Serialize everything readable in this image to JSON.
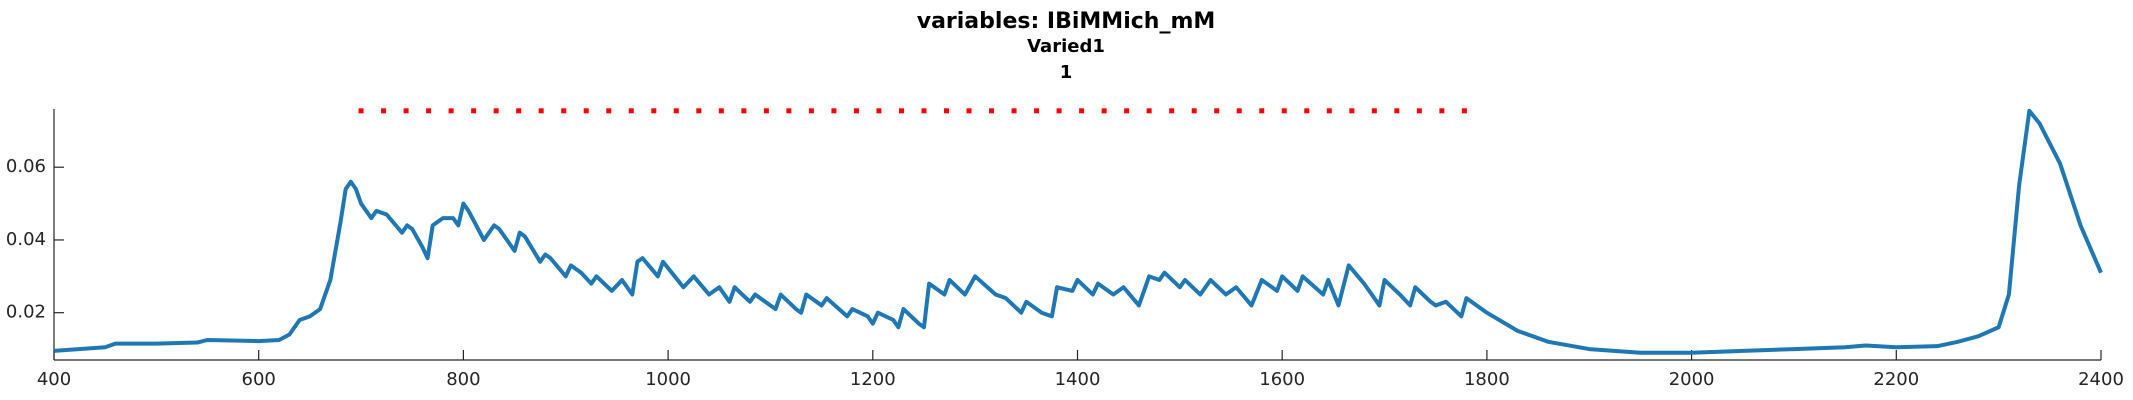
{
  "chart_data": {
    "type": "line",
    "title": "variables: IBiMMich_mM",
    "subtitle": [
      "Varied1",
      "1"
    ],
    "x": [
      400,
      450,
      460,
      500,
      540,
      550,
      600,
      620,
      630,
      640,
      650,
      660,
      670,
      680,
      685,
      690,
      695,
      700,
      710,
      715,
      725,
      740,
      745,
      750,
      760,
      765,
      770,
      780,
      790,
      795,
      800,
      805,
      820,
      830,
      835,
      850,
      855,
      860,
      875,
      880,
      885,
      900,
      905,
      915,
      925,
      930,
      945,
      955,
      965,
      970,
      975,
      990,
      995,
      1015,
      1025,
      1040,
      1050,
      1060,
      1065,
      1080,
      1085,
      1105,
      1110,
      1125,
      1130,
      1135,
      1150,
      1155,
      1175,
      1180,
      1195,
      1200,
      1205,
      1220,
      1225,
      1230,
      1245,
      1250,
      1255,
      1270,
      1275,
      1290,
      1300,
      1320,
      1330,
      1345,
      1350,
      1365,
      1375,
      1380,
      1395,
      1400,
      1415,
      1420,
      1435,
      1445,
      1460,
      1470,
      1480,
      1485,
      1500,
      1505,
      1520,
      1530,
      1545,
      1555,
      1570,
      1580,
      1595,
      1600,
      1615,
      1620,
      1640,
      1645,
      1655,
      1665,
      1680,
      1690,
      1695,
      1700,
      1715,
      1725,
      1730,
      1745,
      1750,
      1760,
      1775,
      1780,
      1800,
      1830,
      1860,
      1900,
      1950,
      2000,
      2050,
      2100,
      2150,
      2170,
      2200,
      2240,
      2260,
      2280,
      2300,
      2310,
      2320,
      2330,
      2340,
      2360,
      2380,
      2400
    ],
    "series": [
      {
        "color": "#1f77b4",
        "values": [
          0.0095,
          0.0105,
          0.0115,
          0.0115,
          0.0118,
          0.0125,
          0.0122,
          0.0125,
          0.014,
          0.018,
          0.019,
          0.021,
          0.029,
          0.045,
          0.054,
          0.056,
          0.054,
          0.05,
          0.046,
          0.048,
          0.047,
          0.042,
          0.044,
          0.043,
          0.038,
          0.035,
          0.044,
          0.046,
          0.046,
          0.044,
          0.05,
          0.048,
          0.04,
          0.044,
          0.043,
          0.037,
          0.042,
          0.041,
          0.034,
          0.036,
          0.035,
          0.03,
          0.033,
          0.031,
          0.028,
          0.03,
          0.026,
          0.029,
          0.025,
          0.034,
          0.035,
          0.03,
          0.034,
          0.027,
          0.03,
          0.025,
          0.027,
          0.023,
          0.027,
          0.023,
          0.025,
          0.021,
          0.025,
          0.021,
          0.02,
          0.025,
          0.022,
          0.024,
          0.019,
          0.021,
          0.019,
          0.017,
          0.02,
          0.018,
          0.016,
          0.021,
          0.017,
          0.016,
          0.028,
          0.025,
          0.029,
          0.025,
          0.03,
          0.025,
          0.024,
          0.02,
          0.023,
          0.02,
          0.019,
          0.027,
          0.026,
          0.029,
          0.025,
          0.028,
          0.025,
          0.027,
          0.022,
          0.03,
          0.029,
          0.031,
          0.027,
          0.029,
          0.025,
          0.029,
          0.025,
          0.027,
          0.022,
          0.029,
          0.026,
          0.03,
          0.026,
          0.03,
          0.025,
          0.029,
          0.022,
          0.033,
          0.028,
          0.024,
          0.022,
          0.029,
          0.025,
          0.022,
          0.027,
          0.023,
          0.022,
          0.023,
          0.019,
          0.024,
          0.02,
          0.015,
          0.012,
          0.01,
          0.009,
          0.009,
          0.0095,
          0.01,
          0.0105,
          0.011,
          0.0105,
          0.0108,
          0.012,
          0.0135,
          0.016,
          0.025,
          0.055,
          0.0755,
          0.072,
          0.061,
          0.044,
          0.031
        ]
      }
    ],
    "markers": {
      "color": "#ff0000",
      "x": [
        700,
        722,
        744,
        766,
        788,
        810,
        832,
        854,
        876,
        898,
        920,
        942,
        964,
        986,
        1008,
        1030,
        1052,
        1074,
        1096,
        1118,
        1140,
        1162,
        1184,
        1206,
        1228,
        1250,
        1272,
        1294,
        1316,
        1338,
        1360,
        1382,
        1404,
        1426,
        1448,
        1470,
        1492,
        1514,
        1536,
        1558,
        1580,
        1602,
        1624,
        1646,
        1668,
        1690,
        1712,
        1734,
        1756,
        1778
      ],
      "values": [
        0.0755,
        0.0755,
        0.0755,
        0.0755,
        0.0755,
        0.0755,
        0.0755,
        0.0755,
        0.0755,
        0.0755,
        0.0755,
        0.0755,
        0.0755,
        0.0755,
        0.0755,
        0.0755,
        0.0755,
        0.0755,
        0.0755,
        0.0755,
        0.0755,
        0.0755,
        0.0755,
        0.0755,
        0.0755,
        0.0755,
        0.0755,
        0.0755,
        0.0755,
        0.0755,
        0.0755,
        0.0755,
        0.0755,
        0.0755,
        0.0755,
        0.0755,
        0.0755,
        0.0755,
        0.0755,
        0.0755,
        0.0755,
        0.0755,
        0.0755,
        0.0755,
        0.0755,
        0.0755,
        0.0755,
        0.0755,
        0.0755,
        0.0755
      ]
    },
    "xlim": [
      400,
      2400
    ],
    "ylim": [
      0.007,
      0.076
    ],
    "xticks": [
      400,
      600,
      800,
      1000,
      1200,
      1400,
      1600,
      1800,
      2000,
      2200,
      2400
    ],
    "yticks": [
      0.02,
      0.04,
      0.06
    ],
    "grid": false
  }
}
